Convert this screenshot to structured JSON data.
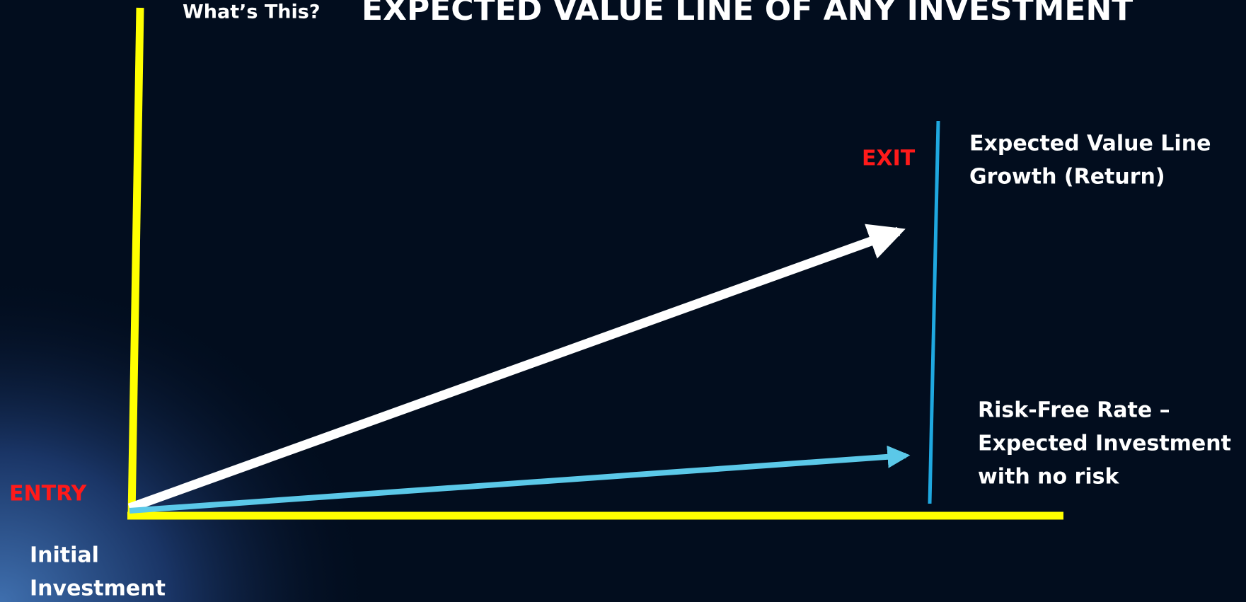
{
  "header": {
    "prefix": "What’s This?",
    "title": "EXPECTED VALUE LINE OF ANY INVESTMENT"
  },
  "labels": {
    "entry": "ENTRY",
    "exit": "EXIT",
    "expected_value": [
      "Expected Value Line",
      "Growth (Return)"
    ],
    "risk_free": [
      "Risk-Free Rate –",
      "Expected Investment",
      "with no risk"
    ],
    "initial": [
      "Initial",
      "Investment"
    ]
  }
}
